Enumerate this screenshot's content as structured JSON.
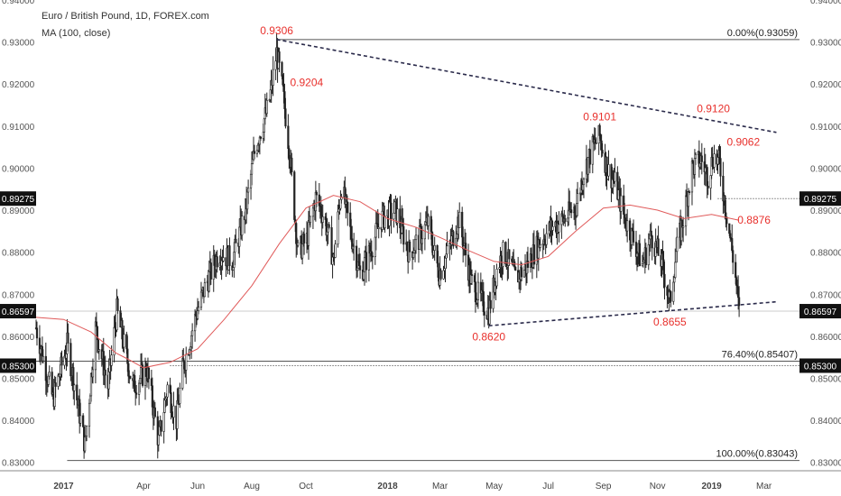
{
  "header": {
    "title": "Euro / British Pound, 1D, FOREX.com",
    "indicator": "MA (100, close)"
  },
  "chart_data": {
    "type": "candlestick",
    "symbol": "EURGBP",
    "ylim": [
      0.828,
      0.94
    ],
    "y_ticks": [
      "0.83000",
      "0.84000",
      "0.85000",
      "0.86000",
      "0.87000",
      "0.88000",
      "0.89000",
      "0.90000",
      "0.91000",
      "0.92000",
      "0.93000",
      "0.94000"
    ],
    "y_tick_values": [
      0.83,
      0.84,
      0.85,
      0.86,
      0.87,
      0.88,
      0.89,
      0.9,
      0.91,
      0.92,
      0.93,
      0.94
    ],
    "x_range": [
      "2016-12-01",
      "2019-04-10"
    ],
    "x_ticks": [
      {
        "date": "2017-01-01",
        "label": "2017",
        "bold": true
      },
      {
        "date": "2017-04-01",
        "label": "Apr"
      },
      {
        "date": "2017-06-01",
        "label": "Jun"
      },
      {
        "date": "2017-08-01",
        "label": "Aug"
      },
      {
        "date": "2017-10-01",
        "label": "Oct"
      },
      {
        "date": "2018-01-01",
        "label": "2018",
        "bold": true
      },
      {
        "date": "2018-03-01",
        "label": "Mar"
      },
      {
        "date": "2018-05-01",
        "label": "May"
      },
      {
        "date": "2018-07-01",
        "label": "Jul"
      },
      {
        "date": "2018-09-01",
        "label": "Sep"
      },
      {
        "date": "2018-11-01",
        "label": "Nov"
      },
      {
        "date": "2019-01-01",
        "label": "2019",
        "bold": true
      },
      {
        "date": "2019-03-01",
        "label": "Mar"
      }
    ],
    "price_path": [
      [
        "2016-12-01",
        0.862
      ],
      [
        "2016-12-20",
        0.845
      ],
      [
        "2017-01-05",
        0.858
      ],
      [
        "2017-01-12",
        0.85
      ],
      [
        "2017-01-25",
        0.834
      ],
      [
        "2017-02-06",
        0.862
      ],
      [
        "2017-02-20",
        0.848
      ],
      [
        "2017-03-02",
        0.866
      ],
      [
        "2017-03-10",
        0.858
      ],
      [
        "2017-03-20",
        0.848
      ],
      [
        "2017-04-05",
        0.852
      ],
      [
        "2017-04-18",
        0.835
      ],
      [
        "2017-04-28",
        0.848
      ],
      [
        "2017-05-08",
        0.84
      ],
      [
        "2017-05-15",
        0.852
      ],
      [
        "2017-05-30",
        0.865
      ],
      [
        "2017-06-10",
        0.872
      ],
      [
        "2017-06-25",
        0.88
      ],
      [
        "2017-07-10",
        0.878
      ],
      [
        "2017-07-25",
        0.89
      ],
      [
        "2017-08-05",
        0.905
      ],
      [
        "2017-08-20",
        0.915
      ],
      [
        "2017-08-29",
        0.9275
      ],
      [
        "2017-09-05",
        0.918
      ],
      [
        "2017-09-12",
        0.905
      ],
      [
        "2017-09-22",
        0.88
      ],
      [
        "2017-10-02",
        0.883
      ],
      [
        "2017-10-12",
        0.893
      ],
      [
        "2017-10-22",
        0.888
      ],
      [
        "2017-11-01",
        0.878
      ],
      [
        "2017-11-10",
        0.896
      ],
      [
        "2017-11-20",
        0.885
      ],
      [
        "2017-12-01",
        0.875
      ],
      [
        "2017-12-12",
        0.88
      ],
      [
        "2017-12-25",
        0.888
      ],
      [
        "2018-01-10",
        0.89
      ],
      [
        "2018-01-25",
        0.88
      ],
      [
        "2018-02-05",
        0.883
      ],
      [
        "2018-02-15",
        0.887
      ],
      [
        "2018-02-28",
        0.875
      ],
      [
        "2018-03-10",
        0.88
      ],
      [
        "2018-03-22",
        0.888
      ],
      [
        "2018-04-05",
        0.873
      ],
      [
        "2018-04-18",
        0.868
      ],
      [
        "2018-04-25",
        0.8658
      ],
      [
        "2018-05-05",
        0.877
      ],
      [
        "2018-05-12",
        0.88
      ],
      [
        "2018-05-25",
        0.874
      ],
      [
        "2018-06-05",
        0.876
      ],
      [
        "2018-06-20",
        0.882
      ],
      [
        "2018-07-05",
        0.886
      ],
      [
        "2018-07-20",
        0.888
      ],
      [
        "2018-08-01",
        0.891
      ],
      [
        "2018-08-10",
        0.899
      ],
      [
        "2018-08-20",
        0.905
      ],
      [
        "2018-08-28",
        0.9075
      ],
      [
        "2018-09-05",
        0.9
      ],
      [
        "2018-09-15",
        0.896
      ],
      [
        "2018-09-25",
        0.888
      ],
      [
        "2018-10-05",
        0.883
      ],
      [
        "2018-10-15",
        0.877
      ],
      [
        "2018-10-25",
        0.884
      ],
      [
        "2018-11-05",
        0.878
      ],
      [
        "2018-11-15",
        0.868
      ],
      [
        "2018-11-22",
        0.88
      ],
      [
        "2018-12-01",
        0.889
      ],
      [
        "2018-12-10",
        0.9
      ],
      [
        "2018-12-20",
        0.902
      ],
      [
        "2018-12-28",
        0.898
      ],
      [
        "2019-01-03",
        0.903
      ],
      [
        "2019-01-10",
        0.901
      ],
      [
        "2019-01-15",
        0.893
      ],
      [
        "2019-01-23",
        0.882
      ],
      [
        "2019-01-28",
        0.874
      ],
      [
        "2019-02-01",
        0.8655
      ]
    ],
    "ma100_path": [
      [
        "2016-12-01",
        0.8645
      ],
      [
        "2017-01-01",
        0.864
      ],
      [
        "2017-02-01",
        0.861
      ],
      [
        "2017-03-01",
        0.856
      ],
      [
        "2017-03-15",
        0.8545
      ],
      [
        "2017-04-01",
        0.8525
      ],
      [
        "2017-05-01",
        0.8538
      ],
      [
        "2017-06-01",
        0.857
      ],
      [
        "2017-07-01",
        0.864
      ],
      [
        "2017-08-01",
        0.872
      ],
      [
        "2017-09-01",
        0.882
      ],
      [
        "2017-10-01",
        0.8905
      ],
      [
        "2017-11-01",
        0.8935
      ],
      [
        "2017-12-01",
        0.892
      ],
      [
        "2018-01-01",
        0.888
      ],
      [
        "2018-02-01",
        0.886
      ],
      [
        "2018-03-01",
        0.8835
      ],
      [
        "2018-04-01",
        0.8805
      ],
      [
        "2018-05-01",
        0.8778
      ],
      [
        "2018-06-01",
        0.877
      ],
      [
        "2018-07-01",
        0.879
      ],
      [
        "2018-08-01",
        0.885
      ],
      [
        "2018-09-01",
        0.8905
      ],
      [
        "2018-10-01",
        0.8912
      ],
      [
        "2018-11-01",
        0.89
      ],
      [
        "2018-12-01",
        0.888
      ],
      [
        "2019-01-01",
        0.889
      ],
      [
        "2019-02-01",
        0.8876
      ]
    ],
    "trendlines": [
      {
        "name": "upper",
        "style": "dashed",
        "from": [
          "2017-08-29",
          0.9306
        ],
        "to": [
          "2019-03-15",
          0.9085
        ]
      },
      {
        "name": "lower",
        "style": "dashed",
        "from": [
          "2018-04-25",
          0.8625
        ],
        "to": [
          "2019-03-15",
          0.8682
        ]
      }
    ],
    "fib_levels": [
      {
        "label": "0.00%(0.93059)",
        "value": 0.93059,
        "from": "2017-08-29"
      },
      {
        "label": "76.40%(0.85407)",
        "value": 0.85407,
        "from": "2016-12-01"
      },
      {
        "label": "100.00%(0.83043)",
        "value": 0.83043,
        "from": "2017-01-05"
      }
    ],
    "horizontal_lines": [
      {
        "value": 0.89275,
        "style": "dotted",
        "from": "2019-01-08"
      },
      {
        "value": 0.853,
        "style": "dotted",
        "from": "2017-05-01"
      }
    ],
    "annotations": [
      {
        "text": "0.9306",
        "date": "2017-08-29",
        "value": 0.9306,
        "pos": "above"
      },
      {
        "text": "0.9204",
        "date": "2017-09-05",
        "value": 0.9204,
        "pos": "right"
      },
      {
        "text": "0.9101",
        "date": "2018-08-28",
        "value": 0.9101,
        "pos": "above"
      },
      {
        "text": "0.9120",
        "date": "2019-01-03",
        "value": 0.912,
        "pos": "above"
      },
      {
        "text": "0.9062",
        "date": "2019-01-10",
        "value": 0.9062,
        "pos": "right"
      },
      {
        "text": "0.8876",
        "date": "2019-01-22",
        "value": 0.8876,
        "pos": "right"
      },
      {
        "text": "0.8620",
        "date": "2018-04-25",
        "value": 0.862,
        "pos": "below"
      },
      {
        "text": "0.8655",
        "date": "2018-11-15",
        "value": 0.8655,
        "pos": "below"
      }
    ],
    "price_badges": [
      {
        "text": "0.89275",
        "value": 0.89275
      },
      {
        "text": "0.86597",
        "value": 0.86597
      },
      {
        "text": "0.85300",
        "value": 0.853
      }
    ],
    "colors": {
      "candle": "#222222",
      "ma": "#e05a5a",
      "annotation": "#e8302c",
      "trendline": "#2a2a4a",
      "axis_text": "#555555",
      "badge_bg": "#111111",
      "badge_text": "#ffffff"
    }
  }
}
